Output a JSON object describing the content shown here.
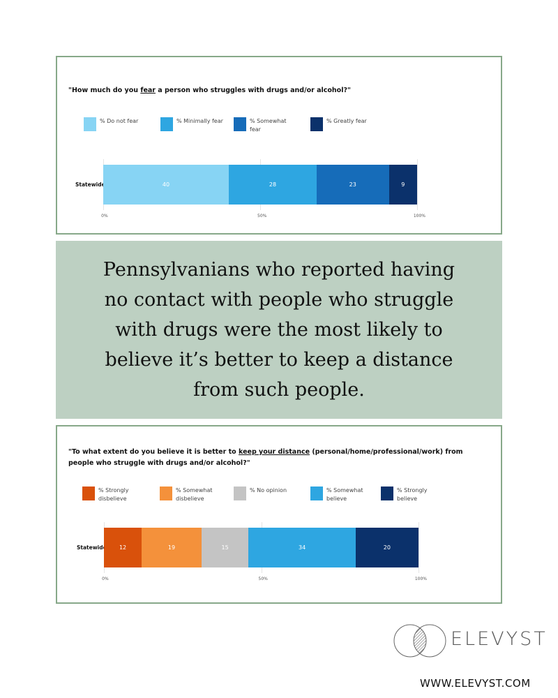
{
  "chart_data": [
    {
      "type": "bar",
      "orientation": "horizontal-stacked",
      "title_pre": "\"How much do you ",
      "title_em": "fear",
      "title_post": " a person who struggles with drugs and/or alcohol?\"",
      "categories": [
        "Statewide"
      ],
      "series": [
        {
          "name": "% Do not fear",
          "values": [
            40
          ],
          "color": "#87d4f4"
        },
        {
          "name": "% Minimally fear",
          "values": [
            28
          ],
          "color": "#2ea6e1"
        },
        {
          "name": "% Somewhat fear",
          "values": [
            23
          ],
          "color": "#166cb9"
        },
        {
          "name": "% Greatly fear",
          "values": [
            9
          ],
          "color": "#0b316b"
        }
      ],
      "xlim": [
        0,
        100
      ],
      "ticks": [
        "0%",
        "50%",
        "100%"
      ]
    },
    {
      "type": "bar",
      "orientation": "horizontal-stacked",
      "title_pre": "\"To what extent do you believe it is better to ",
      "title_em": "keep your distance",
      "title_post": " (personal/home/professional/work) from people who struggle with drugs and/or alcohol?\"",
      "categories": [
        "Statewide"
      ],
      "series": [
        {
          "name": "% Strongly disbelieve",
          "values": [
            12
          ],
          "color": "#d9510b"
        },
        {
          "name": "% Somewhat disbelieve",
          "values": [
            19
          ],
          "color": "#f4913b"
        },
        {
          "name": "% No opinion",
          "values": [
            15
          ],
          "color": "#c4c4c4"
        },
        {
          "name": "% Somewhat believe",
          "values": [
            34
          ],
          "color": "#2ea6e1"
        },
        {
          "name": "% Strongly believe",
          "values": [
            20
          ],
          "color": "#0b316b"
        }
      ],
      "xlim": [
        0,
        100
      ],
      "ticks": [
        "0%",
        "50%",
        "100%"
      ]
    }
  ],
  "headline": "Pennsylvanians who reported having no contact with people who struggle with drugs were the most likely to believe it’s better to keep a distance from such people.",
  "footer": {
    "brand": "ELEVYST",
    "url": "WWW.ELEVYST.COM"
  }
}
